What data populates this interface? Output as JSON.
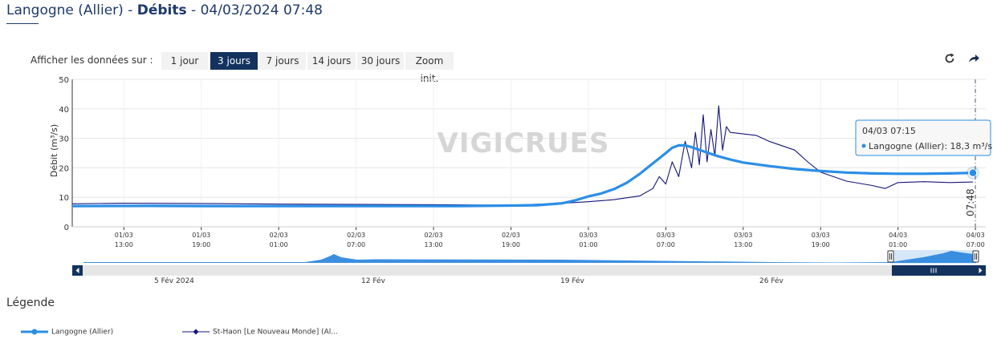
{
  "header": {
    "station": "Langogne (Allier)",
    "separator": " - ",
    "section": "Débits",
    "datetime": " - 04/03/2024 07:48"
  },
  "range_selector": {
    "label": "Afficher les données sur :",
    "buttons": [
      "1 jour",
      "3 jours",
      "7 jours",
      "14 jours",
      "30 jours",
      "Zoom init."
    ],
    "active": "3 jours"
  },
  "toolbar": {
    "refresh_icon": "refresh-icon",
    "share_icon": "share-arrow-icon"
  },
  "watermark": "VIGICRUES",
  "tooltip": {
    "time": "04/03 07:15",
    "series": "Langogne (Allier)",
    "value_text": "18,3 m³/s"
  },
  "now_label": "07:48",
  "navigator": {
    "labels": [
      "5 Fév 2024",
      "12 Fév",
      "19 Fév",
      "26 Fév"
    ]
  },
  "legend": {
    "title": "Légende",
    "items": [
      "Langogne (Allier)",
      "St-Haon [Le Nouveau Monde] (Al..."
    ]
  },
  "colors": {
    "primary_series": "#2b8ee6",
    "secondary_series": "#15157a",
    "active_button": "#13325e",
    "navigator_fill": "#3b8fe0",
    "navigator_dark": "#13325e"
  },
  "chart_data": {
    "type": "line",
    "ylabel": "Débit (m³/s)",
    "ylim": [
      0,
      50
    ],
    "yticks": [
      0,
      10,
      20,
      30,
      40,
      50
    ],
    "x_unit": "hours since 01/03 09:00",
    "xlim": [
      0,
      70.8
    ],
    "xticks": [
      {
        "t": 4,
        "label": [
          "01/03",
          "13:00"
        ]
      },
      {
        "t": 10,
        "label": [
          "01/03",
          "19:00"
        ]
      },
      {
        "t": 16,
        "label": [
          "02/03",
          "01:00"
        ]
      },
      {
        "t": 22,
        "label": [
          "02/03",
          "07:00"
        ]
      },
      {
        "t": 28,
        "label": [
          "02/03",
          "13:00"
        ]
      },
      {
        "t": 34,
        "label": [
          "02/03",
          "19:00"
        ]
      },
      {
        "t": 40,
        "label": [
          "03/03",
          "01:00"
        ]
      },
      {
        "t": 46,
        "label": [
          "03/03",
          "07:00"
        ]
      },
      {
        "t": 52,
        "label": [
          "03/03",
          "13:00"
        ]
      },
      {
        "t": 58,
        "label": [
          "03/03",
          "19:00"
        ]
      },
      {
        "t": 64,
        "label": [
          "04/03",
          "01:00"
        ]
      },
      {
        "t": 70,
        "label": [
          "04/03",
          "07:00"
        ]
      }
    ],
    "grid": true,
    "series": [
      {
        "name": "Langogne (Allier)",
        "x": [
          0,
          6,
          12,
          18,
          24,
          30,
          36,
          38,
          39,
          40,
          41,
          42,
          43,
          44,
          45,
          46,
          46.5,
          47,
          47.5,
          48,
          49,
          50,
          51,
          52,
          54,
          56,
          58,
          60,
          62,
          64,
          66,
          68,
          69.8
        ],
        "y": [
          7.0,
          7.1,
          7.0,
          7.0,
          7.0,
          7.0,
          7.3,
          8.0,
          9.0,
          10.3,
          11.3,
          12.8,
          15.0,
          18.0,
          21.5,
          25.0,
          26.8,
          27.6,
          27.6,
          27.0,
          25.5,
          24.0,
          22.8,
          21.8,
          20.6,
          19.6,
          18.9,
          18.4,
          18.1,
          18.0,
          18.0,
          18.1,
          18.3
        ]
      },
      {
        "name": "St-Haon [Le Nouveau Monde] (Al...",
        "x": [
          0,
          4,
          10,
          16,
          22,
          28,
          34,
          38,
          40,
          42,
          44,
          45,
          45.5,
          46,
          46.5,
          47,
          47.5,
          48,
          48.3,
          48.6,
          48.9,
          49.2,
          49.5,
          49.8,
          50.1,
          50.4,
          50.7,
          51,
          52,
          53,
          54,
          55,
          56,
          57,
          58,
          60,
          62,
          63,
          64,
          66,
          68,
          69.8
        ],
        "y": [
          7.8,
          8.0,
          7.9,
          7.7,
          7.6,
          7.5,
          7.3,
          8.0,
          8.5,
          9.2,
          10.5,
          13.0,
          17.0,
          14.5,
          22.0,
          17.0,
          29.0,
          20.0,
          32.0,
          21.0,
          38.0,
          22.0,
          33.0,
          24.0,
          41.0,
          26.0,
          34.0,
          32.0,
          31.5,
          31.0,
          29.0,
          27.5,
          26.0,
          22.0,
          18.5,
          15.5,
          14.0,
          13.0,
          15.0,
          15.3,
          15.0,
          15.2
        ]
      }
    ]
  }
}
